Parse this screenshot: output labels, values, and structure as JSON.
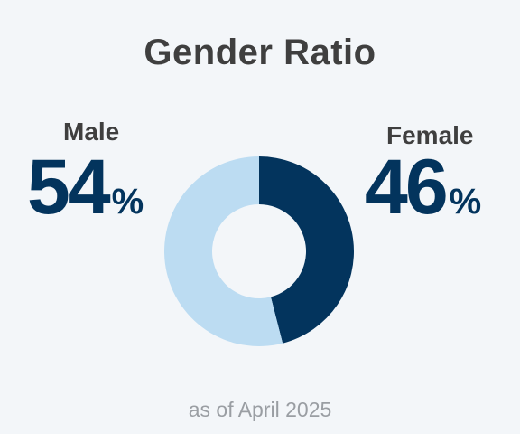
{
  "chart_data": {
    "type": "pie",
    "title": "Gender Ratio",
    "categories": [
      "Male",
      "Female"
    ],
    "values": [
      54,
      46
    ],
    "unit": "%",
    "colors": [
      "#bcdcf2",
      "#03345d"
    ],
    "donut": true,
    "footnote": "as of April 2025"
  },
  "labels": {
    "male": "Male",
    "female": "Female",
    "male_value": "54",
    "female_value": "46",
    "percent_sign": "%"
  }
}
